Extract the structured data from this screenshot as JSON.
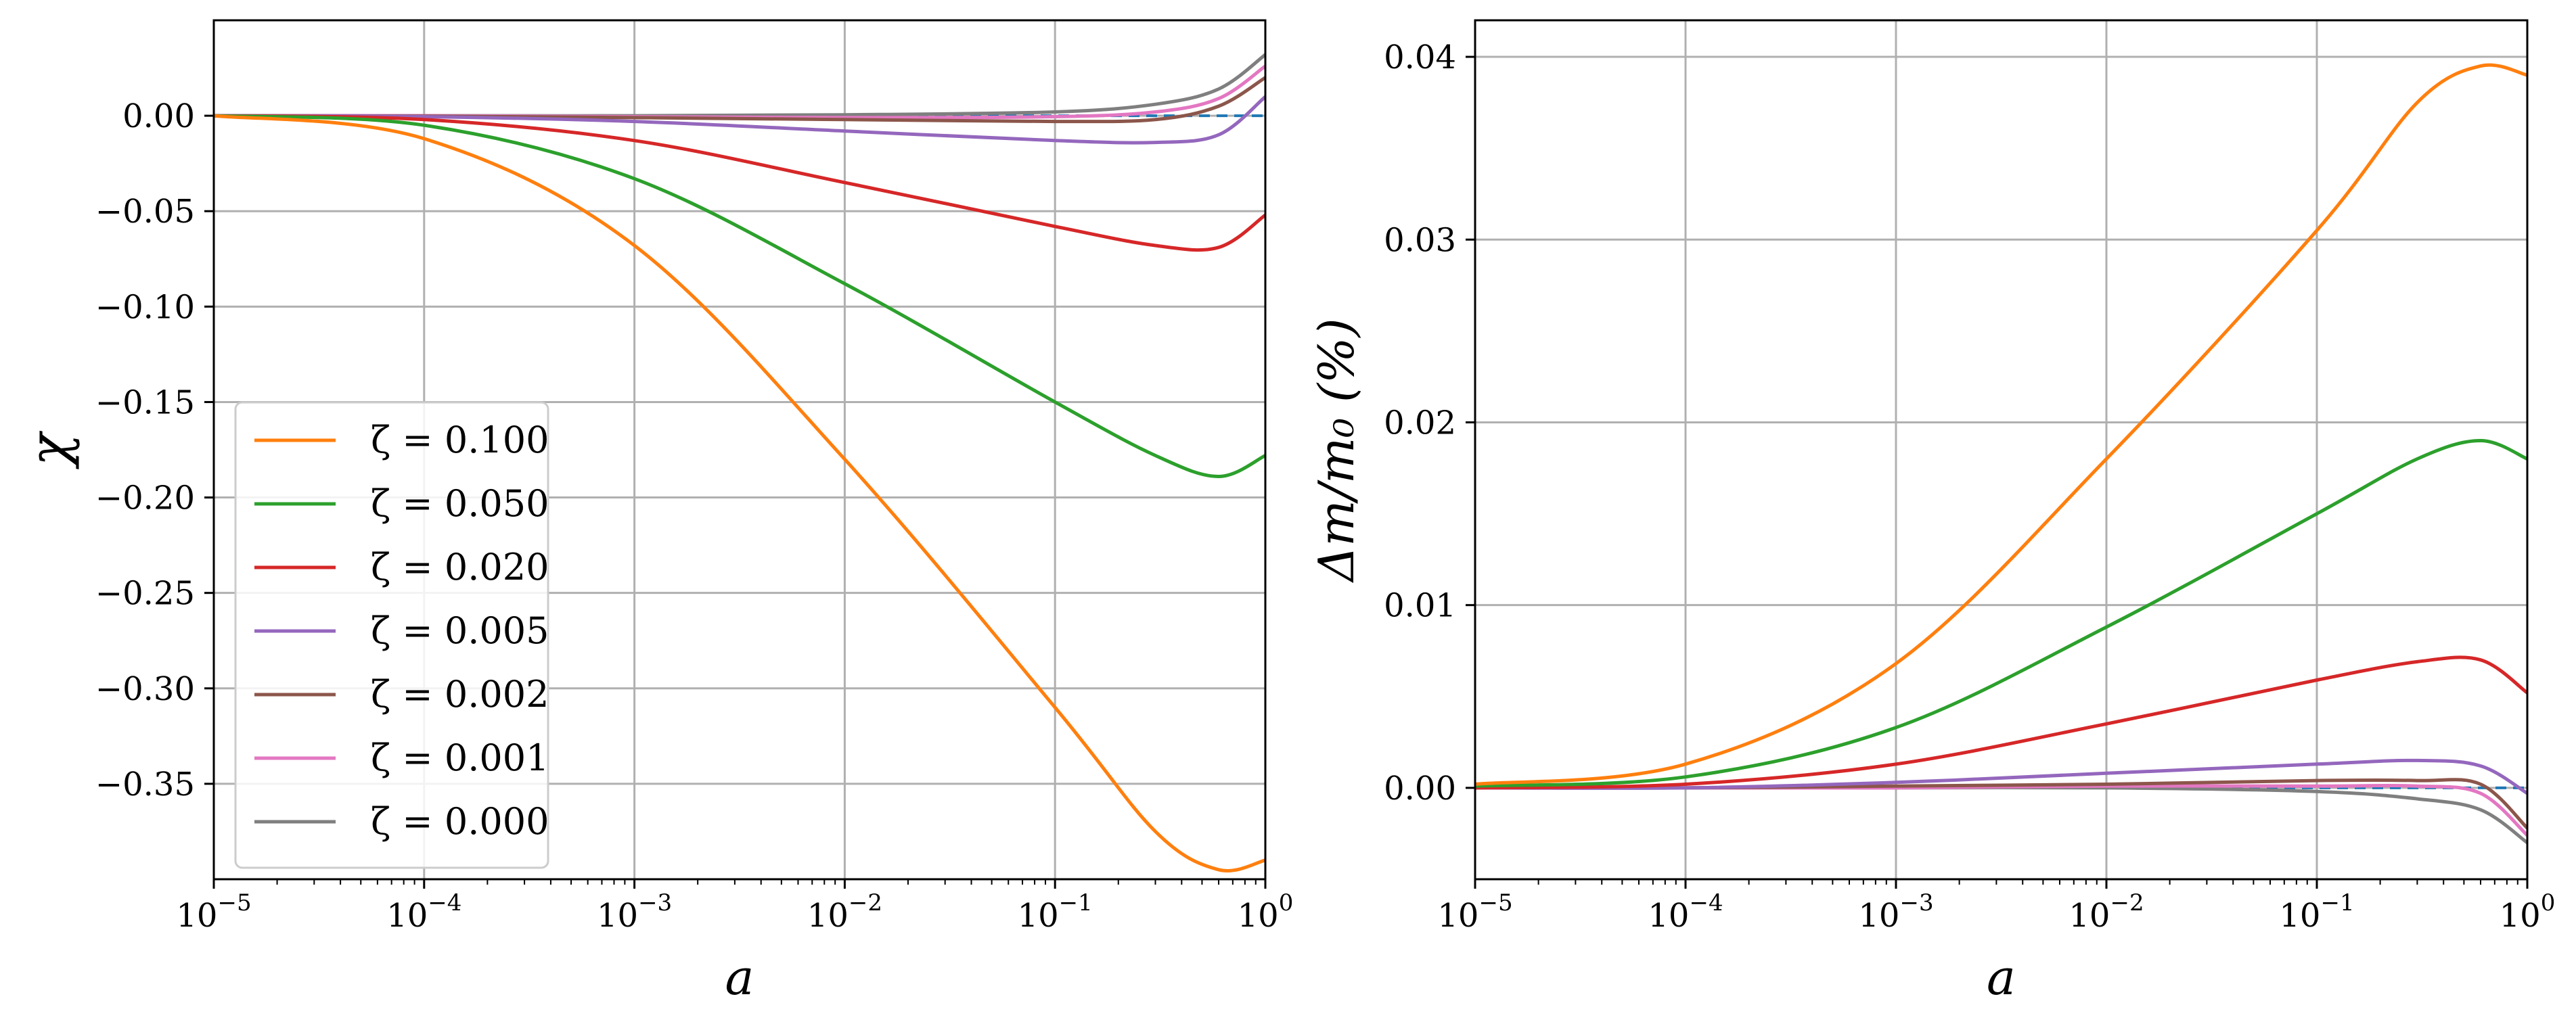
{
  "chart_data": [
    {
      "type": "line",
      "xscale": "log",
      "xlim": [
        1e-05,
        1
      ],
      "ylim": [
        -0.4,
        0.05
      ],
      "xlabel": "a",
      "ylabel": "χ",
      "legend_position": "lower-left",
      "grid": true,
      "xtick_values": [
        1e-05,
        0.0001,
        0.001,
        0.01,
        0.1,
        1
      ],
      "xtick_labels": [
        {
          "base": "10",
          "exp": "−5"
        },
        {
          "base": "10",
          "exp": "−4"
        },
        {
          "base": "10",
          "exp": "−3"
        },
        {
          "base": "10",
          "exp": "−2"
        },
        {
          "base": "10",
          "exp": "−1"
        },
        {
          "base": "10",
          "exp": "0"
        }
      ],
      "ytick_values": [
        0.0,
        -0.05,
        -0.1,
        -0.15,
        -0.2,
        -0.25,
        -0.3,
        -0.35
      ],
      "ytick_labels": [
        "0.00",
        "−0.05",
        "−0.10",
        "−0.15",
        "−0.20",
        "−0.25",
        "−0.30",
        "−0.35"
      ],
      "x": [
        1e-05,
        0.0001,
        0.001,
        0.01,
        0.1,
        0.3,
        0.6,
        1.0
      ],
      "reference_line": {
        "y": 0.0,
        "color": "#1f77b4",
        "style": "dashed"
      },
      "series": [
        {
          "name": "ζ = 0.100",
          "color": "#ff7f0e",
          "values": [
            0.0,
            -0.012,
            -0.068,
            -0.18,
            -0.31,
            -0.375,
            -0.395,
            -0.39
          ]
        },
        {
          "name": "ζ = 0.050",
          "color": "#2ca02c",
          "values": [
            0.0,
            -0.005,
            -0.033,
            -0.088,
            -0.15,
            -0.178,
            -0.189,
            -0.178
          ]
        },
        {
          "name": "ζ = 0.020",
          "color": "#d62728",
          "values": [
            0.0,
            -0.002,
            -0.013,
            -0.035,
            -0.058,
            -0.068,
            -0.069,
            -0.052
          ]
        },
        {
          "name": "ζ = 0.005",
          "color": "#9467bd",
          "values": [
            0.0,
            -0.0005,
            -0.003,
            -0.008,
            -0.013,
            -0.014,
            -0.01,
            0.01
          ]
        },
        {
          "name": "ζ = 0.002",
          "color": "#8c564b",
          "values": [
            0.0,
            -0.0002,
            -0.001,
            -0.002,
            -0.003,
            -0.002,
            0.005,
            0.02
          ]
        },
        {
          "name": "ζ = 0.001",
          "color": "#e377c2",
          "values": [
            0.0,
            0.0,
            -0.0005,
            -0.001,
            -0.0005,
            0.002,
            0.009,
            0.026
          ]
        },
        {
          "name": "ζ = 0.000",
          "color": "#7f7f7f",
          "values": [
            0.0,
            0.0,
            0.0,
            0.0005,
            0.002,
            0.006,
            0.014,
            0.032
          ]
        }
      ]
    },
    {
      "type": "line",
      "xscale": "log",
      "xlim": [
        1e-05,
        1
      ],
      "ylim": [
        -0.005,
        0.042
      ],
      "xlabel": "a",
      "ylabel": "Δm/m₀ (%)",
      "grid": true,
      "xtick_values": [
        1e-05,
        0.0001,
        0.001,
        0.01,
        0.1,
        1
      ],
      "xtick_labels": [
        {
          "base": "10",
          "exp": "−5"
        },
        {
          "base": "10",
          "exp": "−4"
        },
        {
          "base": "10",
          "exp": "−3"
        },
        {
          "base": "10",
          "exp": "−2"
        },
        {
          "base": "10",
          "exp": "−1"
        },
        {
          "base": "10",
          "exp": "0"
        }
      ],
      "ytick_values": [
        0.0,
        0.01,
        0.02,
        0.03,
        0.04
      ],
      "ytick_labels": [
        "0.00",
        "0.01",
        "0.02",
        "0.03",
        "0.04"
      ],
      "x": [
        1e-05,
        0.0001,
        0.001,
        0.01,
        0.1,
        0.3,
        0.6,
        1.0
      ],
      "reference_line": {
        "y": 0.0,
        "color": "#1f77b4",
        "style": "dashed"
      },
      "series": [
        {
          "name": "ζ = 0.100",
          "color": "#ff7f0e",
          "values": [
            0.0002,
            0.0013,
            0.0068,
            0.018,
            0.0305,
            0.0375,
            0.0395,
            0.039
          ]
        },
        {
          "name": "ζ = 0.050",
          "color": "#2ca02c",
          "values": [
            0.0001,
            0.0006,
            0.0033,
            0.0088,
            0.015,
            0.018,
            0.019,
            0.018
          ]
        },
        {
          "name": "ζ = 0.020",
          "color": "#d62728",
          "values": [
            0.0,
            0.0002,
            0.0013,
            0.0035,
            0.0059,
            0.0069,
            0.007,
            0.0052
          ]
        },
        {
          "name": "ζ = 0.005",
          "color": "#9467bd",
          "values": [
            0.0,
            0.0,
            0.0003,
            0.0008,
            0.0013,
            0.0015,
            0.0012,
            -0.0003
          ]
        },
        {
          "name": "ζ = 0.002",
          "color": "#8c564b",
          "values": [
            0.0,
            0.0,
            0.0001,
            0.0002,
            0.0004,
            0.0004,
            0.0002,
            -0.0022
          ]
        },
        {
          "name": "ζ = 0.001",
          "color": "#e377c2",
          "values": [
            0.0,
            0.0,
            0.0,
            0.0001,
            0.0001,
            0.0001,
            -0.0003,
            -0.0026
          ]
        },
        {
          "name": "ζ = 0.000",
          "color": "#7f7f7f",
          "values": [
            0.0,
            0.0,
            0.0,
            0.0,
            -0.0002,
            -0.0006,
            -0.0012,
            -0.003
          ]
        }
      ]
    }
  ]
}
